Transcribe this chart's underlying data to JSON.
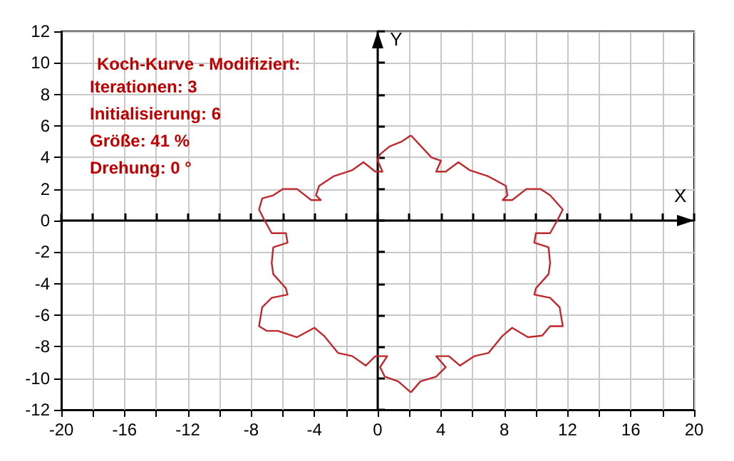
{
  "chart_data": {
    "type": "line",
    "title": "Koch-Kurve - Modifiziert:",
    "annotations": [
      "Iterationen: 3",
      "Initialisierung: 6",
      "Größe: 41 %",
      "Drehung: 0 °"
    ],
    "xlabel": "X",
    "ylabel": "Y",
    "xlim": [
      -20,
      20
    ],
    "ylim": [
      -12,
      12
    ],
    "xticks": [
      -20,
      {
        "value": -18,
        "label": null
      },
      -16,
      {
        "value": -14,
        "label": null
      },
      -12,
      {
        "value": -10,
        "label": null
      },
      -8,
      {
        "value": -6,
        "label": null
      },
      -4,
      {
        "value": -2,
        "label": null
      },
      0,
      {
        "value": 2,
        "label": null
      },
      4,
      {
        "value": 6,
        "label": null
      },
      8,
      {
        "value": 10,
        "label": null
      },
      12,
      {
        "value": 14,
        "label": null
      },
      16,
      {
        "value": 18,
        "label": null
      },
      20
    ],
    "yticks": [
      -12,
      -10,
      -8,
      -6,
      -4,
      -2,
      0,
      2,
      4,
      6,
      8,
      10,
      12
    ],
    "grid": true,
    "marker": "none",
    "line_style": "solid",
    "series": [
      {
        "color": "#c0282d",
        "x": [
          2.1,
          1.5,
          0.75,
          0.15,
          0,
          0.3,
          -0.15,
          -0.9,
          -1.6,
          -2.8,
          -3.7,
          -3.9,
          -3.6,
          -4.2,
          -5.1,
          -6.0,
          -6.6,
          -7.3,
          -7.5,
          -7.2,
          -6.7,
          -5.8,
          -5.7,
          -6.6,
          -6.7,
          -6.6,
          -5.8,
          -5.7,
          -6.7,
          -7.3,
          -7.5,
          -7.0,
          -6.3,
          -5.1,
          -4.0,
          -3.4,
          -2.5,
          -1.6,
          -0.75,
          -0.15,
          0.6,
          0.15,
          0.45,
          1.3,
          2.1
        ],
        "values": [
          5.4,
          5.0,
          4.7,
          4.2,
          3.8,
          3.1,
          3.1,
          3.7,
          3.2,
          2.8,
          2.2,
          1.6,
          1.3,
          1.3,
          2.0,
          2.0,
          1.6,
          1.4,
          0.7,
          0.1,
          -0.8,
          -0.8,
          -1.4,
          -1.7,
          -2.7,
          -3.4,
          -4.3,
          -4.7,
          -4.9,
          -5.5,
          -6.7,
          -7.0,
          -7.0,
          -7.4,
          -6.8,
          -7.3,
          -8.4,
          -8.6,
          -9.2,
          -8.6,
          -8.6,
          -9.3,
          -9.9,
          -10.2,
          -10.9
        ]
      },
      {
        "color": "#c0282d",
        "x": [
          2.1,
          2.7,
          3.7,
          4.3,
          3.7,
          4.5,
          5.2,
          6.1,
          7.0,
          7.9,
          8.5,
          9.5,
          10.4,
          10.9,
          11.7,
          11.5,
          10.9,
          9.9,
          10.0,
          10.8,
          10.9,
          10.8,
          9.9,
          10.0,
          10.9,
          11.4,
          11.7,
          10.9,
          10.3,
          9.4,
          8.5,
          7.9,
          8.2,
          8.1,
          7.0,
          5.8,
          5.1,
          4.3,
          3.7,
          4.0,
          3.4,
          2.1
        ],
        "values": [
          -10.9,
          -10.2,
          -9.9,
          -9.3,
          -8.6,
          -8.6,
          -9.2,
          -8.6,
          -8.4,
          -7.3,
          -6.8,
          -7.4,
          -7.3,
          -6.7,
          -6.7,
          -5.5,
          -4.9,
          -4.7,
          -4.3,
          -3.4,
          -2.7,
          -1.7,
          -1.4,
          -0.8,
          -0.8,
          0.1,
          0.7,
          1.6,
          2.0,
          2.0,
          1.3,
          1.3,
          1.6,
          2.2,
          2.8,
          3.2,
          3.7,
          3.1,
          3.1,
          3.8,
          4.0,
          5.4
        ]
      }
    ]
  }
}
